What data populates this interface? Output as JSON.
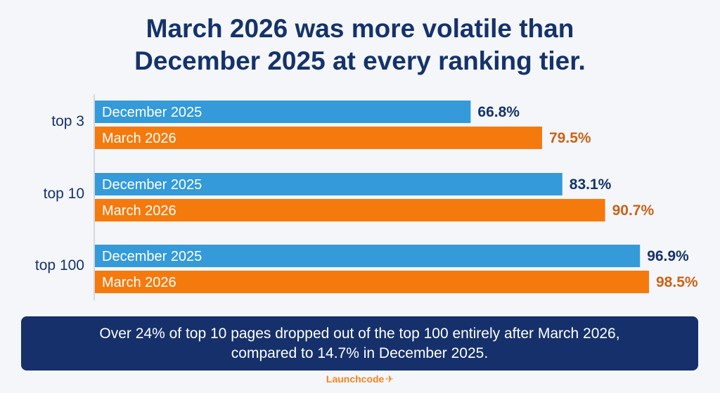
{
  "title_line1": "March 2026 was more volatile than",
  "title_line2": "December 2025 at every ranking tier.",
  "chart_data": {
    "type": "bar",
    "orientation": "horizontal",
    "categories": [
      "top 3",
      "top 10",
      "top 100"
    ],
    "series": [
      {
        "name": "December 2025",
        "color": "#349ad9",
        "values": [
          66.8,
          83.1,
          96.9
        ],
        "labels": [
          "66.8%",
          "83.1%",
          "96.9%"
        ]
      },
      {
        "name": "March 2026",
        "color": "#f57a0e",
        "values": [
          79.5,
          90.7,
          98.5
        ],
        "labels": [
          "79.5%",
          "90.7%",
          "98.5%"
        ]
      }
    ],
    "value_label_colors": {
      "December 2025": "#14336a",
      "March 2026": "#c86418"
    },
    "xlim": [
      0,
      100
    ],
    "grid": false,
    "legend": "none"
  },
  "footer_line1": "Over 24% of top 10 pages dropped out of the top 100 entirely after March 2026,",
  "footer_line2": "compared to 14.7% in December 2025.",
  "brand_name": "Launchcode",
  "brand_icon": "rocket-icon"
}
